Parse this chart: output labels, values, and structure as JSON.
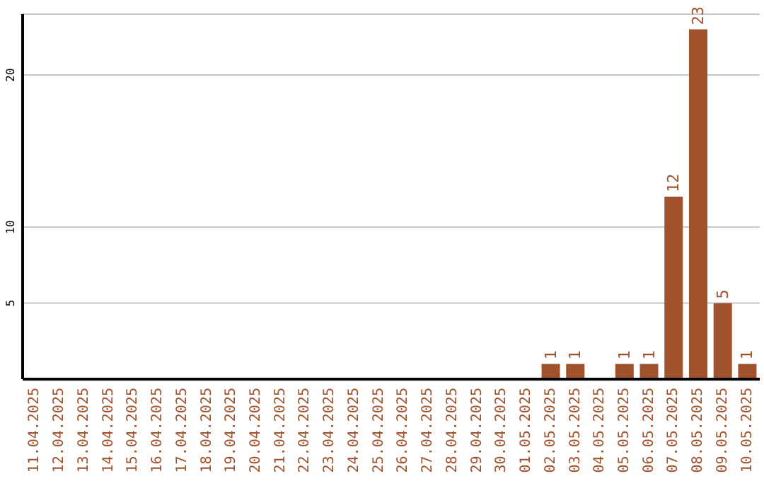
{
  "chart_data": {
    "type": "bar",
    "categories": [
      "11.04.2025",
      "12.04.2025",
      "13.04.2025",
      "14.04.2025",
      "15.04.2025",
      "16.04.2025",
      "17.04.2025",
      "18.04.2025",
      "19.04.2025",
      "20.04.2025",
      "21.04.2025",
      "22.04.2025",
      "23.04.2025",
      "24.04.2025",
      "25.04.2025",
      "26.04.2025",
      "27.04.2025",
      "28.04.2025",
      "29.04.2025",
      "30.04.2025",
      "01.05.2025",
      "02.05.2025",
      "03.05.2025",
      "04.05.2025",
      "05.05.2025",
      "06.05.2025",
      "07.05.2025",
      "08.05.2025",
      "09.05.2025",
      "10.05.2025"
    ],
    "values": [
      0,
      0,
      0,
      0,
      0,
      0,
      0,
      0,
      0,
      0,
      0,
      0,
      0,
      0,
      0,
      0,
      0,
      0,
      0,
      0,
      0,
      1,
      1,
      0,
      1,
      1,
      12,
      23,
      5,
      1
    ],
    "value_labels": [
      null,
      null,
      null,
      null,
      null,
      null,
      null,
      null,
      null,
      null,
      null,
      null,
      null,
      null,
      null,
      null,
      null,
      null,
      null,
      null,
      null,
      "1",
      "1",
      null,
      "1",
      "1",
      "12",
      "23",
      "5",
      "1"
    ],
    "color": "#a0522d",
    "ylim": [
      0,
      24
    ],
    "yticks": [
      5,
      10,
      20
    ],
    "grid": "y"
  }
}
